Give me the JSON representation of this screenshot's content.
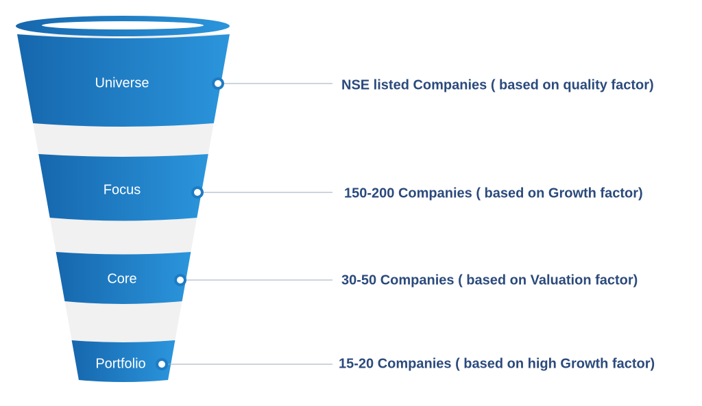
{
  "stages": [
    {
      "label": "Universe",
      "description": "NSE  listed Companies ( based on quality factor)"
    },
    {
      "label": "Focus",
      "description": "150-200 Companies ( based on Growth factor)"
    },
    {
      "label": "Core",
      "description": "30-50 Companies ( based on Valuation factor)"
    },
    {
      "label": "Portfolio",
      "description": "15-20 Companies ( based on high Growth factor)"
    }
  ]
}
